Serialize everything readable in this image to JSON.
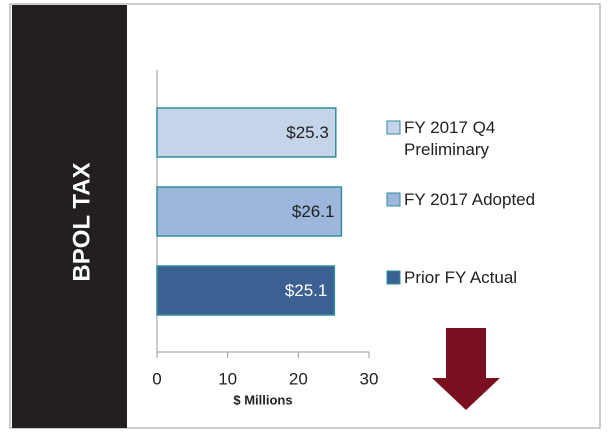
{
  "chart_data": {
    "type": "hbar",
    "side_label": "BPOL TAX",
    "xlabel": "$ Millions",
    "xlim": [
      0,
      30
    ],
    "xticks": [
      0,
      10,
      20,
      30
    ],
    "series": [
      {
        "name": "FY 2017 Q4 Preliminary",
        "color": "#c6d4ea",
        "values": [
          25.3
        ],
        "value_labels": [
          "$25.3"
        ]
      },
      {
        "name": "FY 2017 Adopted",
        "color": "#9cb7db",
        "values": [
          26.1
        ],
        "value_labels": [
          "$26.1"
        ]
      },
      {
        "name": "Prior FY Actual",
        "color": "#3a6191",
        "values": [
          25.1
        ],
        "value_labels": [
          "$25.1"
        ]
      }
    ]
  }
}
